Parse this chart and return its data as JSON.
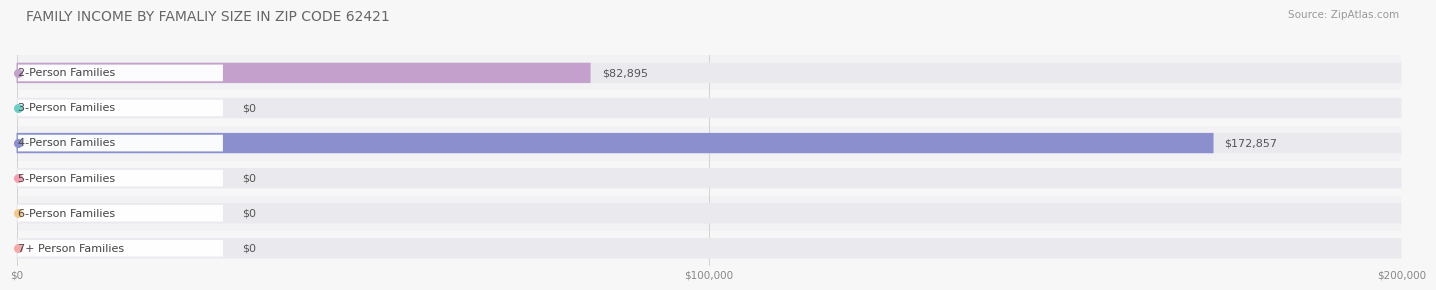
{
  "title": "FAMILY INCOME BY FAMALIY SIZE IN ZIP CODE 62421",
  "source": "Source: ZipAtlas.com",
  "categories": [
    "2-Person Families",
    "3-Person Families",
    "4-Person Families",
    "5-Person Families",
    "6-Person Families",
    "7+ Person Families"
  ],
  "values": [
    82895,
    0,
    172857,
    0,
    0,
    0
  ],
  "bar_colors": [
    "#c4a0cc",
    "#6ecec5",
    "#8b8fce",
    "#f79db0",
    "#f5c98a",
    "#f5a8aa"
  ],
  "value_labels": [
    "$82,895",
    "$0",
    "$172,857",
    "$0",
    "$0",
    "$0"
  ],
  "xlim": [
    0,
    200000
  ],
  "xticks": [
    0,
    100000,
    200000
  ],
  "xtick_labels": [
    "$0",
    "$100,000",
    "$200,000"
  ],
  "background_color": "#f7f7f8",
  "bar_bg_color": "#eaeaee",
  "row_bg_colors": [
    "#f2f2f5",
    "#f7f7f8"
  ],
  "title_fontsize": 10,
  "source_fontsize": 7.5,
  "label_fontsize": 8,
  "value_fontsize": 8
}
